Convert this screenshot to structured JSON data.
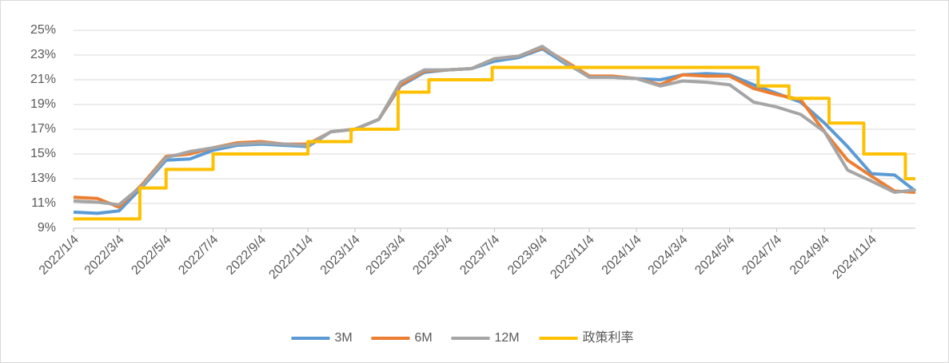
{
  "chart_data": {
    "type": "line",
    "x": [
      "2022/1/4",
      "2022/2/4",
      "2022/3/4",
      "2022/4/4",
      "2022/5/4",
      "2022/6/4",
      "2022/7/4",
      "2022/8/4",
      "2022/9/4",
      "2022/10/4",
      "2022/11/4",
      "2022/12/4",
      "2023/1/4",
      "2023/2/4",
      "2023/3/4",
      "2023/4/4",
      "2023/5/4",
      "2023/6/4",
      "2023/7/4",
      "2023/8/4",
      "2023/9/4",
      "2023/10/4",
      "2023/11/4",
      "2023/12/4",
      "2024/1/4",
      "2024/2/4",
      "2024/3/4",
      "2024/4/4",
      "2024/5/4",
      "2024/6/4",
      "2024/7/4",
      "2024/8/4",
      "2024/9/4",
      "2024/10/4",
      "2024/11/4",
      "2024/12/4",
      "2024/12/31"
    ],
    "series": [
      {
        "name": "3M",
        "color": "#5b9bd5",
        "values": [
          10.3,
          10.2,
          10.4,
          12.4,
          14.5,
          14.6,
          15.3,
          15.7,
          15.8,
          15.7,
          15.6,
          16.8,
          17.0,
          17.8,
          20.5,
          21.6,
          21.8,
          21.9,
          22.5,
          22.8,
          23.5,
          22.3,
          21.3,
          21.2,
          21.1,
          21.0,
          21.4,
          21.5,
          21.4,
          20.6,
          19.9,
          19.2,
          17.5,
          15.6,
          13.4,
          13.3,
          12.0
        ]
      },
      {
        "name": "6M",
        "color": "#ed7d31",
        "values": [
          11.5,
          11.4,
          10.7,
          12.6,
          14.8,
          15.0,
          15.5,
          15.9,
          16.0,
          15.8,
          15.8,
          16.8,
          17.0,
          17.8,
          20.6,
          21.7,
          21.8,
          21.9,
          22.7,
          22.9,
          23.6,
          22.5,
          21.3,
          21.3,
          21.1,
          20.6,
          21.4,
          21.3,
          21.3,
          20.3,
          19.8,
          19.4,
          16.8,
          14.5,
          13.2,
          12.0,
          11.9
        ]
      },
      {
        "name": "12M",
        "color": "#a5a5a5",
        "values": [
          11.2,
          11.1,
          10.9,
          12.5,
          14.7,
          15.2,
          15.5,
          15.8,
          15.9,
          15.8,
          15.7,
          16.8,
          17.0,
          17.8,
          20.8,
          21.8,
          21.8,
          21.9,
          22.7,
          22.9,
          23.7,
          22.4,
          21.2,
          21.2,
          21.1,
          20.5,
          20.9,
          20.8,
          20.6,
          19.2,
          18.8,
          18.2,
          16.8,
          13.7,
          12.8,
          11.9,
          12.1
        ]
      },
      {
        "name": "政策利率",
        "color": "#ffc000",
        "step": true,
        "x": [
          "2022/1/4",
          "2022/3/31",
          "2022/5/4",
          "2022/7/4",
          "2022/11/4",
          "2022/12/30",
          "2023/3/1",
          "2023/4/10",
          "2023/7/1",
          "2024/6/10",
          "2024/7/20",
          "2024/9/10",
          "2024/10/25",
          "2024/12/18",
          "2024/12/31"
        ],
        "values": [
          9.75,
          12.25,
          13.75,
          15,
          16,
          17,
          20,
          21,
          22,
          20.5,
          19.5,
          17.5,
          15,
          13,
          13
        ]
      }
    ],
    "xlim": [
      "2022/1/4",
      "2024/12/31"
    ],
    "xticks": [
      "2022/1/4",
      "2022/3/4",
      "2022/5/4",
      "2022/7/4",
      "2022/9/4",
      "2022/11/4",
      "2023/1/4",
      "2023/3/4",
      "2023/5/4",
      "2023/7/4",
      "2023/9/4",
      "2023/11/4",
      "2024/1/4",
      "2024/3/4",
      "2024/5/4",
      "2024/7/4",
      "2024/9/4",
      "2024/11/4"
    ],
    "ylim": [
      9,
      25
    ],
    "yticks": [
      {
        "value": 9,
        "label": "9%"
      },
      {
        "value": 11,
        "label": "11%"
      },
      {
        "value": 13,
        "label": "13%"
      },
      {
        "value": 15,
        "label": "15%"
      },
      {
        "value": 17,
        "label": "17%"
      },
      {
        "value": 19,
        "label": "19%"
      },
      {
        "value": 21,
        "label": "21%"
      },
      {
        "value": 23,
        "label": "23%"
      },
      {
        "value": 25,
        "label": "25%"
      }
    ],
    "grid": true,
    "legend": "bottom"
  }
}
